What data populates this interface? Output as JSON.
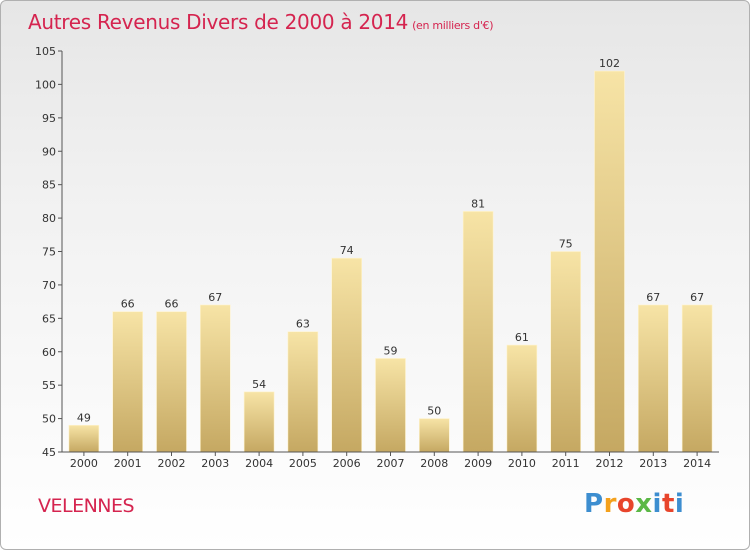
{
  "header": {
    "title": "Autres Revenus Divers de 2000 à 2014",
    "subtitle": "(en milliers d'€)"
  },
  "footer": {
    "commune": "VELENNES",
    "logo": "Proxiti"
  },
  "colors": {
    "title": "#d5244f",
    "bar_light": "#f5e0a0",
    "bar_dark": "#c8ab62"
  },
  "chart_data": {
    "type": "bar",
    "title": "Autres Revenus Divers de 2000 à 2014",
    "subtitle": "(en milliers d'€)",
    "xlabel": "",
    "ylabel": "",
    "ylim": [
      45,
      105
    ],
    "yticks": [
      45,
      50,
      55,
      60,
      65,
      70,
      75,
      80,
      85,
      90,
      95,
      100,
      105
    ],
    "grid": false,
    "categories": [
      "2000",
      "2001",
      "2002",
      "2003",
      "2004",
      "2005",
      "2006",
      "2007",
      "2008",
      "2009",
      "2010",
      "2011",
      "2012",
      "2013",
      "2014"
    ],
    "values": [
      49,
      66,
      66,
      67,
      54,
      63,
      74,
      59,
      50,
      81,
      61,
      75,
      102,
      67,
      67
    ]
  }
}
